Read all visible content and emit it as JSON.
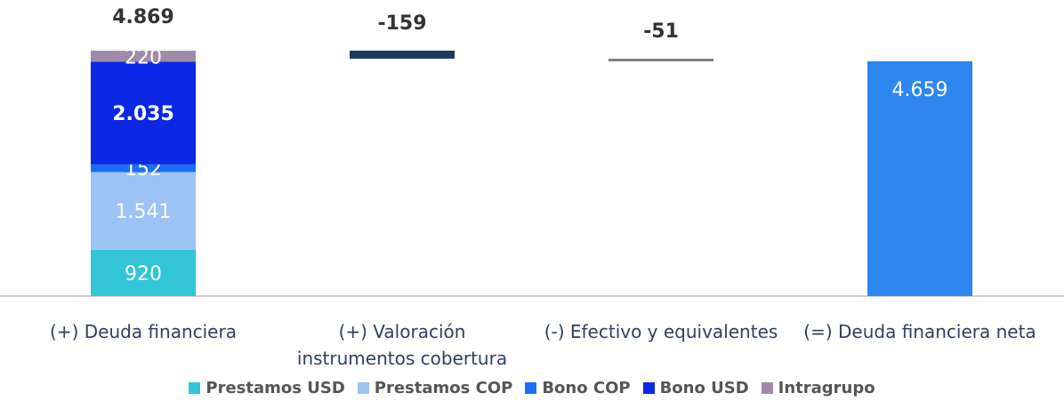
{
  "chart_data": {
    "type": "waterfall",
    "categories": [
      "(+) Deuda financiera",
      "(+) Valoración instrumentos cobertura",
      "(-) Efectivo y equivalentes",
      "(=) Deuda financiera neta"
    ],
    "series": [
      {
        "name": "Prestamos USD",
        "color": "#33c4d8",
        "values": [
          920,
          null,
          null,
          null
        ],
        "value_labels": [
          "920",
          null,
          null,
          null
        ]
      },
      {
        "name": "Prestamos COP",
        "color": "#9dc3f5",
        "values": [
          1541,
          null,
          null,
          null
        ],
        "value_labels": [
          "1.541",
          null,
          null,
          null
        ]
      },
      {
        "name": "Bono COP",
        "color": "#1a6ef5",
        "values": [
          152,
          null,
          null,
          null
        ],
        "value_labels": [
          "152",
          null,
          null,
          null
        ]
      },
      {
        "name": "Bono USD",
        "color": "#0a28e6",
        "values": [
          2035,
          null,
          null,
          null
        ],
        "value_labels": [
          "2.035",
          null,
          null,
          null
        ],
        "label_bold": true
      },
      {
        "name": "Intragrupo",
        "color": "#a08aa8",
        "values": [
          220,
          null,
          null,
          null
        ],
        "value_labels": [
          "220",
          null,
          null,
          null
        ]
      }
    ],
    "total": {
      "value": 4869,
      "label": "4.869"
    },
    "adjustments": {
      "values": [
        -159,
        -51
      ],
      "colors": [
        "#203864",
        "#7f7f7f"
      ]
    },
    "net": {
      "value": 4659,
      "label": "4.659",
      "color": "#2e86f0"
    },
    "legend": "bottom"
  }
}
